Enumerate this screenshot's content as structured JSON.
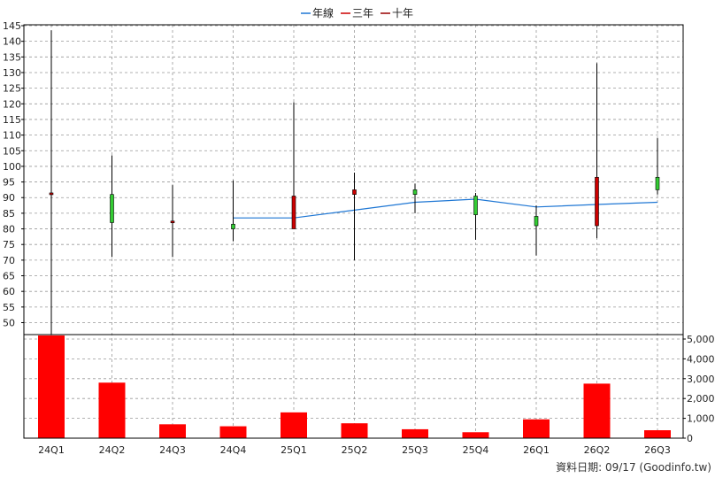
{
  "chart_data": {
    "type": "candlestick",
    "legend": [
      {
        "label": "年線",
        "color": "#1f77d4"
      },
      {
        "label": "三年",
        "color": "#cc0000"
      },
      {
        "label": "十年",
        "color": "#990000"
      }
    ],
    "categories": [
      "24Q1",
      "24Q2",
      "24Q3",
      "24Q4",
      "25Q1",
      "25Q2",
      "25Q3",
      "25Q4",
      "26Q1",
      "26Q2",
      "26Q3"
    ],
    "price_axis": {
      "min": 45,
      "max": 145,
      "step": 5
    },
    "volume_axis": {
      "min": 0,
      "max": 5500,
      "ticks": [
        0,
        1000,
        2000,
        3000,
        4000,
        5000
      ],
      "tick_labels": [
        "0",
        "1,000",
        "2,000",
        "3,000",
        "4,000",
        "5,000"
      ]
    },
    "candles": [
      {
        "open": 91.5,
        "close": 91.0,
        "high": 143.5,
        "low": 45.0
      },
      {
        "open": 82.0,
        "close": 91.0,
        "high": 103.5,
        "low": 71.0
      },
      {
        "open": 82.5,
        "close": 82.0,
        "high": 94.0,
        "low": 71.0
      },
      {
        "open": 80.0,
        "close": 81.5,
        "high": 95.5,
        "low": 76.0
      },
      {
        "open": 90.5,
        "close": 80.0,
        "high": 120.5,
        "low": 80.0
      },
      {
        "open": 92.5,
        "close": 91.0,
        "high": 98.0,
        "low": 70.0
      },
      {
        "open": 91.0,
        "close": 92.5,
        "high": 94.5,
        "low": 85.0
      },
      {
        "open": 84.5,
        "close": 90.5,
        "high": 91.5,
        "low": 76.5
      },
      {
        "open": 81.0,
        "close": 84.0,
        "high": 87.5,
        "low": 71.5
      },
      {
        "open": 96.5,
        "close": 81.0,
        "high": 133.0,
        "low": 77.0
      },
      {
        "open": 92.5,
        "close": 96.5,
        "high": 109.0,
        "low": 91.0
      }
    ],
    "annual_line": [
      null,
      null,
      null,
      83.5,
      83.5,
      86.0,
      88.5,
      89.5,
      87.0,
      87.8,
      88.5
    ],
    "volumes": [
      5600,
      2800,
      700,
      600,
      1300,
      750,
      450,
      300,
      950,
      2750,
      400
    ],
    "up_color": "#33cc33",
    "down_color": "#cc0000",
    "volume_color": "#ff0000",
    "annual_line_color": "#1f77d4"
  },
  "footer": "資料日期: 09/17 (Goodinfo.tw)"
}
